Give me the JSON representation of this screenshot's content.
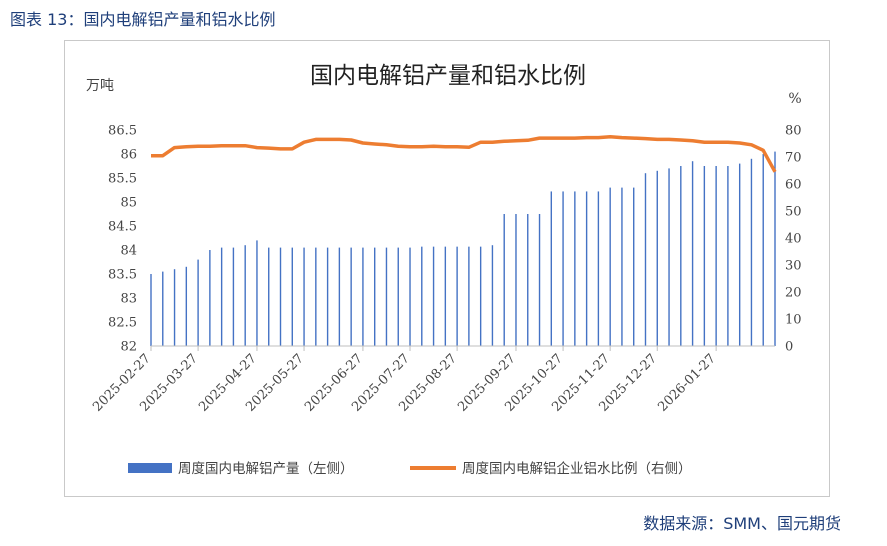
{
  "caption": "图表 13：国内电解铝产量和铝水比例",
  "source": "数据来源：SMM、国元期货",
  "colors": {
    "bar": "#4472c4",
    "line": "#ed7d31",
    "caption": "#1f3f7a",
    "axis": "#bfbfbf"
  },
  "chart_data": {
    "type": "bar+line",
    "title": "国内电解铝产量和铝水比例",
    "y_left_unit": "万吨",
    "y_right_unit": "%",
    "y_left_lim": [
      82,
      86.5
    ],
    "y_left_ticks": [
      "86.5",
      "86",
      "85.5",
      "85",
      "84.5",
      "84",
      "83.5",
      "83",
      "82.5",
      "82"
    ],
    "y_right_lim": [
      0,
      80
    ],
    "y_right_ticks": [
      "80",
      "70",
      "60",
      "50",
      "40",
      "30",
      "20",
      "10",
      "0"
    ],
    "x_ticks": [
      "2025-02-27",
      "2025-03-27",
      "2025-04-27",
      "2025-05-27",
      "2025-06-27",
      "2025-07-27",
      "2025-08-27",
      "2025-09-27",
      "2025-10-27",
      "2025-11-27",
      "2025-12-27",
      "2026-01-27"
    ],
    "x_tick_index": [
      0,
      4,
      9,
      13,
      18,
      22,
      26,
      31,
      35,
      39,
      43,
      48
    ],
    "legend": "bottom",
    "grid": false,
    "series": [
      {
        "name": "周度国内电解铝产量（左侧）",
        "type": "bar",
        "axis": "left",
        "values": [
          83.5,
          83.55,
          83.6,
          83.65,
          83.8,
          84.0,
          84.05,
          84.05,
          84.1,
          84.2,
          84.05,
          84.05,
          84.05,
          84.05,
          84.05,
          84.05,
          84.05,
          84.05,
          84.05,
          84.05,
          84.05,
          84.05,
          84.05,
          84.07,
          84.07,
          84.07,
          84.07,
          84.07,
          84.07,
          84.1,
          84.75,
          84.75,
          84.75,
          84.75,
          85.22,
          85.22,
          85.22,
          85.22,
          85.22,
          85.3,
          85.3,
          85.3,
          85.6,
          85.65,
          85.7,
          85.75,
          85.85,
          85.75,
          85.75,
          85.75,
          85.8,
          85.9,
          86.0,
          86.05
        ]
      },
      {
        "name": "周度国内电解铝企业铝水比例（右侧）",
        "type": "line",
        "axis": "right",
        "values": [
          70.5,
          70.5,
          73.5,
          73.8,
          74.0,
          74.0,
          74.2,
          74.2,
          74.2,
          73.5,
          73.3,
          73.0,
          73.0,
          75.5,
          76.5,
          76.5,
          76.5,
          76.3,
          75.2,
          74.8,
          74.5,
          74.0,
          73.8,
          73.8,
          74.0,
          73.8,
          73.8,
          73.6,
          75.5,
          75.5,
          75.8,
          76.0,
          76.2,
          77.0,
          77.0,
          77.0,
          77.0,
          77.2,
          77.2,
          77.5,
          77.2,
          77.0,
          76.8,
          76.5,
          76.5,
          76.3,
          76.0,
          75.5,
          75.5,
          75.5,
          75.2,
          74.5,
          72.5,
          64.5
        ]
      }
    ]
  }
}
